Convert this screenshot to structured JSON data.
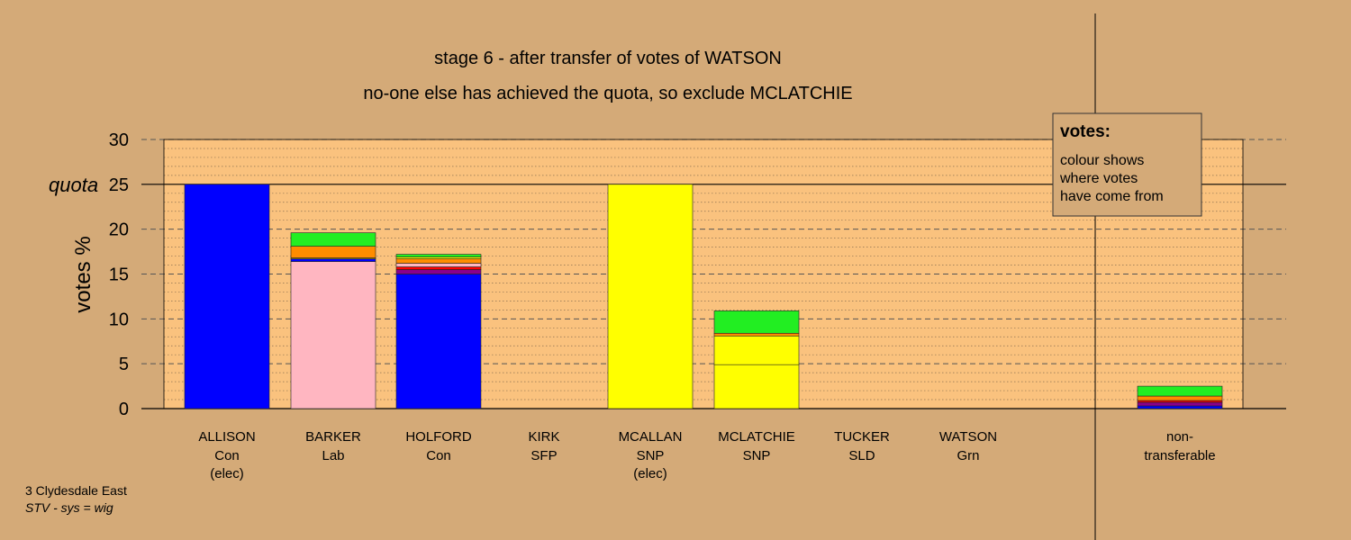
{
  "chart_data": {
    "type": "bar",
    "stacked": true,
    "title": "stage 6 - after transfer of votes of WATSON",
    "subtitle": "no-one else has achieved the quota, so exclude MCLATCHIE",
    "ylabel": "votes %",
    "quota_label": "quota",
    "quota": 25,
    "ylim": [
      0,
      30
    ],
    "yticks": [
      "0",
      "5",
      "10",
      "15",
      "20",
      "25",
      "30"
    ],
    "grid": "dotted minor every 1, dashed major every 5",
    "legend": {
      "title": "votes:",
      "lines": [
        "colour shows",
        "where votes",
        "have come from"
      ],
      "position": "top-right"
    },
    "categories": [
      {
        "name": "ALLISON",
        "party": "Con",
        "note": "(elec)"
      },
      {
        "name": "BARKER",
        "party": "Lab",
        "note": ""
      },
      {
        "name": "HOLFORD",
        "party": "Con",
        "note": ""
      },
      {
        "name": "KIRK",
        "party": "SFP",
        "note": ""
      },
      {
        "name": "MCALLAN",
        "party": "SNP",
        "note": "(elec)"
      },
      {
        "name": "MCLATCHIE",
        "party": "SNP",
        "note": ""
      },
      {
        "name": "TUCKER",
        "party": "SLD",
        "note": ""
      },
      {
        "name": "WATSON",
        "party": "Grn",
        "note": ""
      }
    ],
    "nontransferable_label_line1": "non-",
    "nontransferable_label_line2": "transferable",
    "bars": [
      {
        "segments": [
          {
            "value": 25.0,
            "color": "#0000ff"
          }
        ]
      },
      {
        "segments": [
          {
            "value": 16.4,
            "color": "#ffb6c1"
          },
          {
            "value": 0.3,
            "color": "#0000ff"
          },
          {
            "value": 0.1,
            "color": "#ffff00"
          },
          {
            "value": 1.3,
            "color": "#ff8c00"
          },
          {
            "value": 1.5,
            "color": "#22ee22"
          }
        ]
      },
      {
        "segments": [
          {
            "value": 15.0,
            "color": "#0000ff"
          },
          {
            "value": 0.5,
            "color": "#8b008b"
          },
          {
            "value": 0.3,
            "color": "#ff0000"
          },
          {
            "value": 0.4,
            "color": "#ffb6c1"
          },
          {
            "value": 0.5,
            "color": "#ff8c00"
          },
          {
            "value": 0.2,
            "color": "#ffff00"
          },
          {
            "value": 0.3,
            "color": "#22ee22"
          }
        ]
      },
      {
        "segments": []
      },
      {
        "segments": [
          {
            "value": 25.0,
            "color": "#ffff00"
          }
        ]
      },
      {
        "segments": [
          {
            "value": 4.9,
            "color": "#ffff00"
          },
          {
            "value": 3.2,
            "color": "#ffff00"
          },
          {
            "value": 0.3,
            "color": "#ff8c00"
          },
          {
            "value": 2.5,
            "color": "#22ee22"
          }
        ]
      },
      {
        "segments": []
      },
      {
        "segments": []
      }
    ],
    "nontransferable": {
      "segments": [
        {
          "value": 0.3,
          "color": "#0000ff"
        },
        {
          "value": 0.4,
          "color": "#8b008b"
        },
        {
          "value": 0.2,
          "color": "#ff0000"
        },
        {
          "value": 0.5,
          "color": "#ff8c00"
        },
        {
          "value": 1.1,
          "color": "#22ee22"
        }
      ]
    }
  },
  "footer": {
    "line1": "3 Clydesdale East",
    "line2": "STV - sys = wig"
  }
}
